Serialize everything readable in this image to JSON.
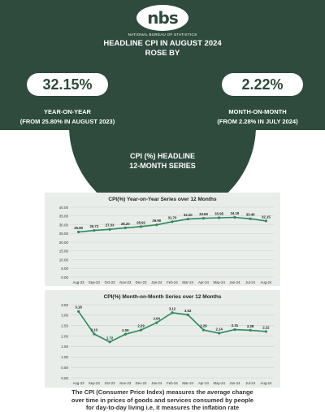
{
  "header": {
    "logo_text": "nbs",
    "bureau": "NATIONAL BUREAU OF STATISTICS",
    "title_line1": "HEADLINE CPI IN AUGUST 2024",
    "title_line2": "ROSE BY",
    "yoy": {
      "value": "32.15%",
      "label": "YEAR-ON-YEAR",
      "sub": "(FROM 25.80% IN AUGUST 2023)"
    },
    "mom": {
      "value": "2.22%",
      "label": "MONTH-ON-MONTH",
      "sub": "(FROM 2.28% IN JULY 2024)"
    },
    "series_title_line1": "CPI (%)  HEADLINE",
    "series_title_line2": "12-MONTH SERIES",
    "colors": {
      "band": "#2e4b3d",
      "line": "#2f8a5a",
      "panel": "#e8ede9"
    }
  },
  "footer": {
    "line1": "The CPI (Consumer Price Index) measures the average change",
    "line2": "over time in prices of goods and services consumed by people",
    "line3": "for day-to-day living i.e, it measures the inflation rate"
  },
  "chart_data": [
    {
      "type": "line",
      "title": "CPI(%) Year-on-Year Series over 12 Months",
      "categories": [
        "Aug-23",
        "Sep-23",
        "Oct-23",
        "Nov-23",
        "Dec-23",
        "Jan-24",
        "Feb-24",
        "Mar-24",
        "Apr-24",
        "May-24",
        "Jun-24",
        "Jul-24",
        "Aug-24"
      ],
      "values": [
        25.8,
        26.72,
        27.33,
        28.2,
        28.92,
        29.9,
        31.7,
        33.2,
        33.69,
        33.95,
        34.19,
        33.4,
        32.15
      ],
      "labels": [
        "25.80",
        "26.72",
        "27.33",
        "28.20",
        "28.92",
        "29.90",
        "31.70",
        "33.20",
        "33.69",
        "33.95",
        "34.19",
        "33.40",
        "32.15"
      ],
      "yticks": [
        "0.00",
        "5.00",
        "10.00",
        "15.00",
        "20.00",
        "25.00",
        "30.00",
        "35.00",
        "40.00"
      ],
      "ylim": [
        0,
        40
      ],
      "grid": true
    },
    {
      "type": "line",
      "title": "CPI(%) Month-on-Month Series over 12 Months",
      "categories": [
        "Aug-23",
        "Sep-23",
        "Oct-23",
        "Nov-23",
        "Dec-23",
        "Jan-24",
        "Feb-24",
        "Mar-24",
        "Apr-24",
        "May-24",
        "Jun-24",
        "Jul-24",
        "Aug-24"
      ],
      "values": [
        3.18,
        2.1,
        1.72,
        2.09,
        2.29,
        2.64,
        3.12,
        3.02,
        2.29,
        2.14,
        2.31,
        2.28,
        2.22
      ],
      "labels": [
        "3.18",
        "2.10",
        "1.72",
        "2.09",
        "2.29",
        "2.64",
        "3.12",
        "3.02",
        "2.29",
        "2.14",
        "2.31",
        "2.28",
        "2.22"
      ],
      "yticks": [
        "0.00",
        "0.50",
        "1.00",
        "1.50",
        "2.00",
        "2.50",
        "3.00",
        "3.50"
      ],
      "ylim": [
        0,
        3.5
      ],
      "grid": true
    }
  ]
}
